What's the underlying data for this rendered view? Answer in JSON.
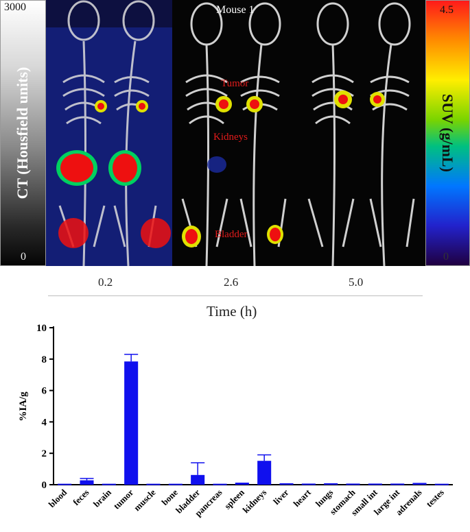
{
  "colors": {
    "bar": "#1010ee",
    "tumor_label": "#e21b1b",
    "axis": "#000000"
  },
  "imaging": {
    "mouse_title": "Mouse 1",
    "ct_scale": {
      "label": "CT (Housfield units)",
      "max": "3000",
      "min": "0"
    },
    "suv_scale": {
      "label": "SUV (g/mL)",
      "max": "4.5",
      "min": "0"
    },
    "organ_labels": {
      "tumor": "Tumor",
      "kidneys": "Kidneys",
      "bladder": "Bladder"
    },
    "time_points": [
      "0.2",
      "2.6",
      "5.0"
    ],
    "time_axis_title": "Time (h)"
  },
  "chart_data": {
    "type": "bar",
    "title": "",
    "xlabel": "",
    "ylabel": "%IA/g",
    "ylim": [
      0,
      10
    ],
    "yticks": [
      "0",
      "2",
      "4",
      "6",
      "8",
      "10"
    ],
    "categories": [
      "blood",
      "feces",
      "brain",
      "tumor",
      "muscle",
      "bone",
      "bladder",
      "pancreas",
      "spleen",
      "kidneys",
      "liver",
      "heart",
      "lungs",
      "stomach",
      "small int",
      "large int",
      "adrenals",
      "testes"
    ],
    "values": [
      0.02,
      0.28,
      0.02,
      7.85,
      0.02,
      0.02,
      0.62,
      0.02,
      0.07,
      1.52,
      0.04,
      0.03,
      0.04,
      0.03,
      0.03,
      0.03,
      0.06,
      0.02
    ],
    "errors": [
      0.01,
      0.12,
      0.01,
      0.45,
      0.01,
      0.01,
      0.78,
      0.01,
      0.03,
      0.38,
      0.02,
      0.01,
      0.02,
      0.01,
      0.01,
      0.01,
      0.02,
      0.01
    ]
  }
}
